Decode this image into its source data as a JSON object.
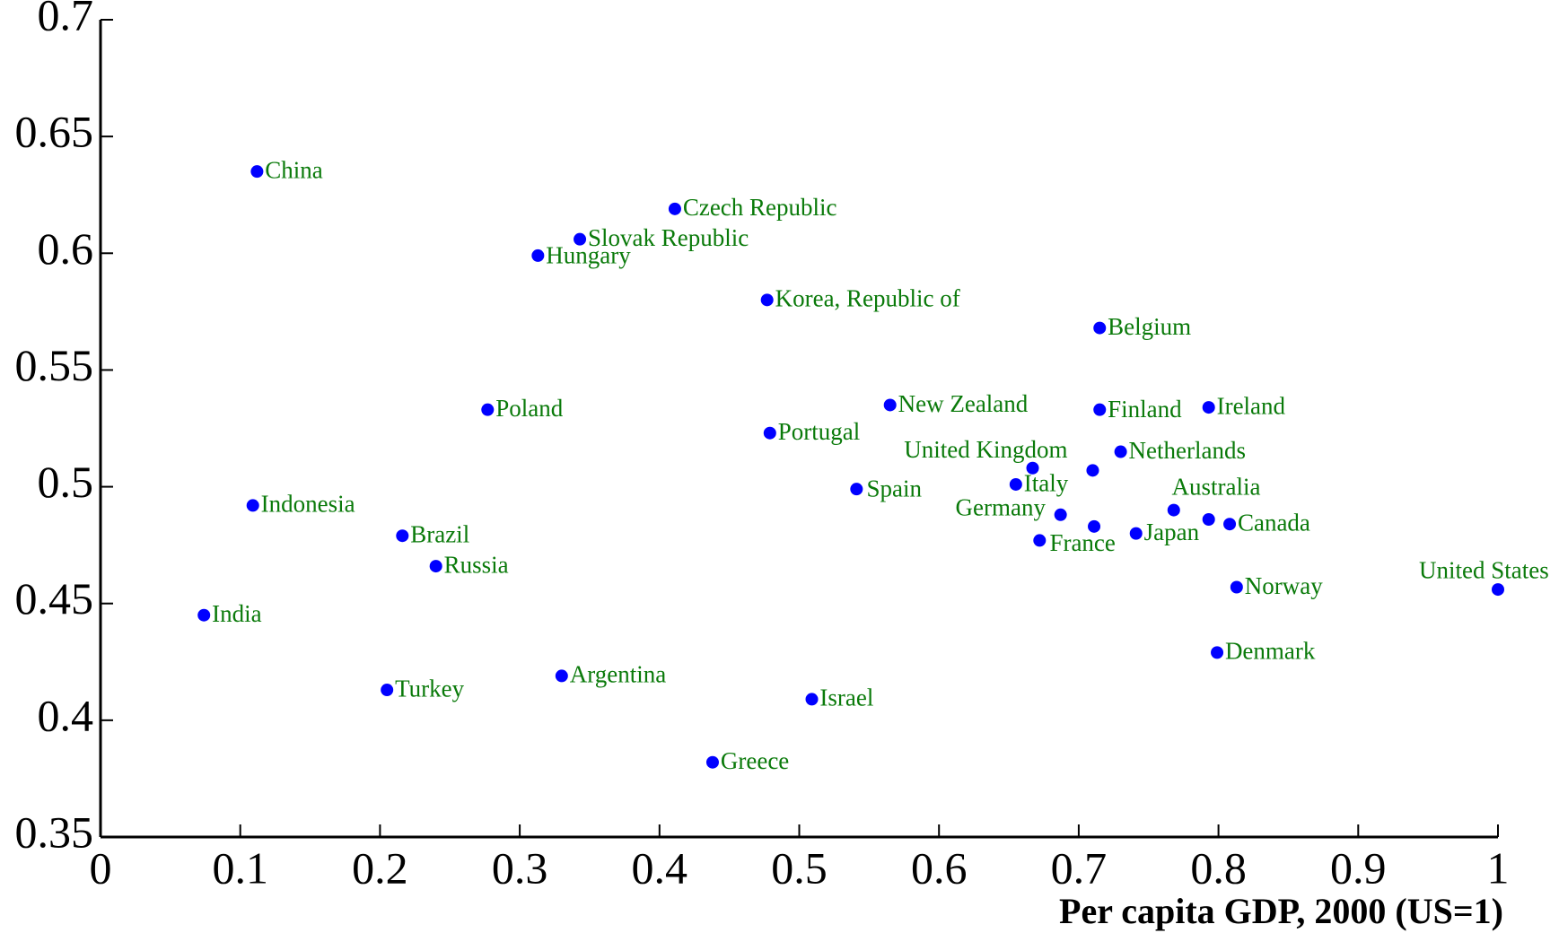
{
  "chart_data": {
    "type": "scatter",
    "x_label": "Per capita GDP, 2000 (US=1)",
    "labels": [
      "China",
      "Czech Republic",
      "Slovak Republic",
      "Hungary",
      "Korea, Republic of",
      "Belgium",
      "Poland",
      "New Zealand",
      "Finland",
      "Ireland",
      "Portugal",
      "United Kingdom",
      "Netherlands",
      null,
      "Spain",
      "Italy",
      "Germany",
      "France",
      null,
      "Australia",
      "Japan",
      null,
      "Canada",
      "Indonesia",
      "Brazil",
      "Russia",
      "India",
      "Norway",
      "United States",
      "Denmark",
      "Turkey",
      "Argentina",
      "Israel",
      "Greece"
    ],
    "x": [
      0.112,
      0.411,
      0.343,
      0.313,
      0.477,
      0.715,
      0.277,
      0.565,
      0.715,
      0.793,
      0.479,
      0.667,
      0.73,
      0.71,
      0.541,
      0.655,
      0.687,
      0.672,
      0.711,
      0.768,
      0.741,
      0.793,
      0.808,
      0.109,
      0.216,
      0.24,
      0.074,
      0.813,
      1.0,
      0.799,
      0.205,
      0.33,
      0.509,
      0.438
    ],
    "values": [
      0.635,
      0.619,
      0.606,
      0.599,
      0.58,
      0.568,
      0.533,
      0.535,
      0.533,
      0.534,
      0.523,
      0.508,
      0.515,
      0.507,
      0.499,
      0.501,
      0.488,
      0.477,
      0.483,
      0.49,
      0.48,
      0.486,
      0.484,
      0.492,
      0.479,
      0.466,
      0.445,
      0.457,
      0.456,
      0.429,
      0.413,
      0.419,
      0.409,
      0.382
    ],
    "color": "#0000ff",
    "label_color": "#0a7a0a",
    "xlim": [
      0,
      1
    ],
    "ylim": [
      0.35,
      0.7
    ],
    "xticks": [
      0,
      0.1,
      0.2,
      0.3,
      0.4,
      0.5,
      0.6,
      0.7,
      0.8,
      0.9,
      1
    ],
    "yticks": [
      0.35,
      0.4,
      0.45,
      0.5,
      0.55,
      0.6,
      0.65,
      0.7
    ]
  }
}
